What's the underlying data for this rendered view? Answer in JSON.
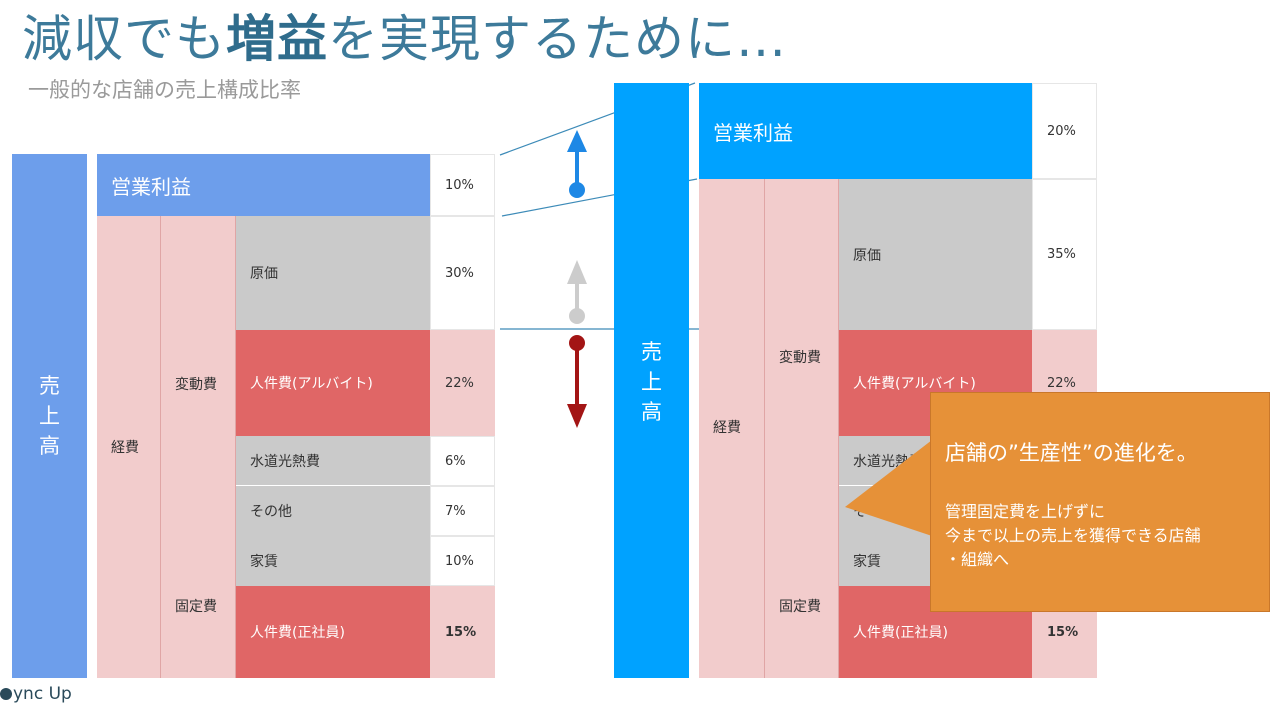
{
  "title": {
    "part1": "減収でも",
    "bold": "増益",
    "part2": "を実現するために…"
  },
  "subtitle": "一般的な店舗の売上構成比率",
  "left": {
    "sales_label": [
      "売",
      "上",
      "高"
    ],
    "profit_label": "営業利益",
    "profit_pct": "10%",
    "expense_label": "経費",
    "variable_label": "変動費",
    "fixed_label": "固定費",
    "rows": [
      {
        "label": "原価",
        "pct": "30%"
      },
      {
        "label": "人件費(アルバイト)",
        "pct": "22%"
      },
      {
        "label": "水道光熱費",
        "pct": "6%"
      },
      {
        "label": "その他",
        "pct": "7%"
      },
      {
        "label": "家賃",
        "pct": "10%"
      },
      {
        "label": "人件費(正社員)",
        "pct": "15%"
      }
    ]
  },
  "right": {
    "sales_label": [
      "売",
      "上",
      "高"
    ],
    "profit_label": "営業利益",
    "profit_pct": "20%",
    "expense_label": "経費",
    "variable_label": "変動費",
    "fixed_label": "固定費",
    "rows": [
      {
        "label": "原価",
        "pct": "35%"
      },
      {
        "label": "人件費(アルバイト)",
        "pct": "22%"
      },
      {
        "label": "水道光熱費",
        "pct": ""
      },
      {
        "label": "その他",
        "pct": ""
      },
      {
        "label": "家賃",
        "pct": ""
      },
      {
        "label": "人件費(正社員)",
        "pct": "15%"
      }
    ]
  },
  "callout": {
    "heading": "店舗の”生産性”の進化を。",
    "line1": "管理固定費を上げずに",
    "line2": "今まで以上の売上を獲得できる店舗",
    "line3": "・組織へ"
  },
  "logo": "ync Up",
  "colors": {
    "title": "#3d7a9a",
    "left_sales_bar": "#6d9eeb",
    "right_sales_bar": "#00a2ff",
    "gray": "#cacaca",
    "red": "#e06666",
    "pink": "#f2cccc",
    "callout": "#e69138",
    "arrow_up": "#1e88e5",
    "arrow_gray": "#cccccc",
    "arrow_down": "#a31515"
  }
}
